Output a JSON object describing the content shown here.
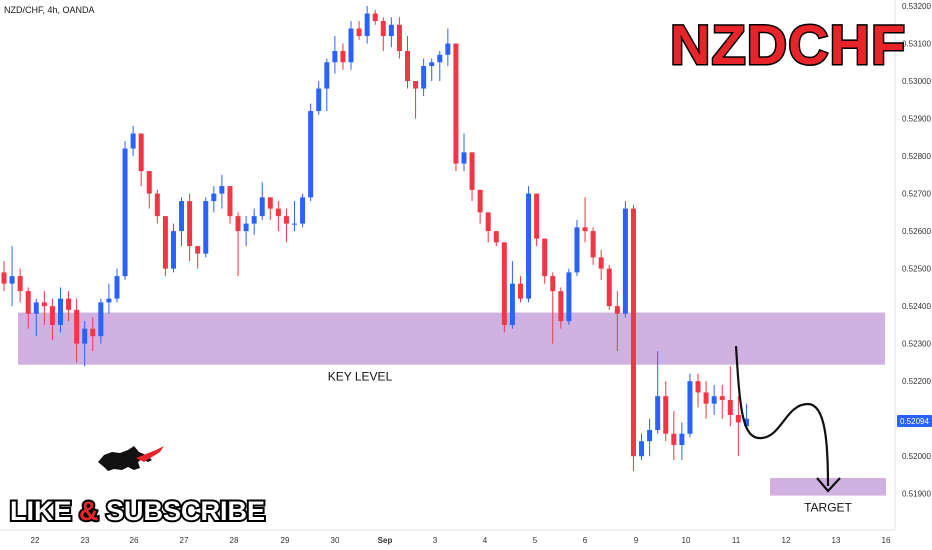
{
  "header": {
    "symbol_info": "NZD/CHF, 4h, OANDA"
  },
  "brand_title": "NZDCHF",
  "promo": {
    "like": "LIKE",
    "amp": "&",
    "subscribe": "SUBSCRIBE"
  },
  "colors": {
    "up": "#2962ff",
    "down": "#f23645",
    "zone": "#c8a5dd",
    "brand": "#e8242b"
  },
  "chart_data": {
    "type": "candlestick",
    "ylim": [
      0.5187,
      0.532
    ],
    "yticks": [
      0.532,
      0.531,
      0.53,
      0.529,
      0.528,
      0.527,
      0.526,
      0.525,
      0.524,
      0.523,
      0.522,
      0.521,
      0.52,
      0.519
    ],
    "x_ticks": [
      "22",
      "23",
      "26",
      "27",
      "28",
      "29",
      "30",
      "Sep",
      "3",
      "4",
      "5",
      "6",
      "9",
      "10",
      "11",
      "12",
      "13",
      "16"
    ],
    "current_price": "0.52094",
    "key_level": {
      "label": "KEY LEVEL",
      "from": 0.52244,
      "to": 0.52383
    },
    "target": {
      "label": "TARGET",
      "from": 0.51895,
      "to": 0.51942
    },
    "candles": [
      [
        0.5249,
        0.5252,
        0.5244,
        0.5246
      ],
      [
        0.5246,
        0.5256,
        0.524,
        0.5248
      ],
      [
        0.5248,
        0.525,
        0.5241,
        0.5244
      ],
      [
        0.5244,
        0.5245,
        0.5234,
        0.5238
      ],
      [
        0.5238,
        0.5242,
        0.5232,
        0.5241
      ],
      [
        0.5241,
        0.5244,
        0.5235,
        0.524
      ],
      [
        0.524,
        0.5242,
        0.5231,
        0.5235
      ],
      [
        0.5235,
        0.5245,
        0.5233,
        0.5242
      ],
      [
        0.5242,
        0.5244,
        0.5236,
        0.5239
      ],
      [
        0.5239,
        0.5242,
        0.5225,
        0.523
      ],
      [
        0.523,
        0.5236,
        0.5224,
        0.5234
      ],
      [
        0.5234,
        0.5237,
        0.5228,
        0.5232
      ],
      [
        0.5232,
        0.5242,
        0.523,
        0.5241
      ],
      [
        0.5241,
        0.5246,
        0.5238,
        0.5242
      ],
      [
        0.5242,
        0.525,
        0.5241,
        0.5248
      ],
      [
        0.5248,
        0.5284,
        0.5247,
        0.5282
      ],
      [
        0.5282,
        0.5288,
        0.528,
        0.5286
      ],
      [
        0.5286,
        0.5286,
        0.5272,
        0.5276
      ],
      [
        0.5276,
        0.5276,
        0.5266,
        0.527
      ],
      [
        0.527,
        0.5271,
        0.5262,
        0.5264
      ],
      [
        0.5264,
        0.5264,
        0.5248,
        0.525
      ],
      [
        0.525,
        0.5262,
        0.5249,
        0.526
      ],
      [
        0.526,
        0.5269,
        0.5256,
        0.5268
      ],
      [
        0.5268,
        0.527,
        0.5252,
        0.5256
      ],
      [
        0.5256,
        0.5256,
        0.525,
        0.5254
      ],
      [
        0.5254,
        0.5269,
        0.5253,
        0.5268
      ],
      [
        0.5268,
        0.5272,
        0.5265,
        0.527
      ],
      [
        0.527,
        0.5275,
        0.5266,
        0.5272
      ],
      [
        0.5272,
        0.5272,
        0.5262,
        0.5264
      ],
      [
        0.5264,
        0.5265,
        0.5248,
        0.526
      ],
      [
        0.526,
        0.5264,
        0.5256,
        0.5262
      ],
      [
        0.5262,
        0.5266,
        0.5259,
        0.5264
      ],
      [
        0.5264,
        0.5273,
        0.5263,
        0.5269
      ],
      [
        0.5269,
        0.5269,
        0.5263,
        0.5266
      ],
      [
        0.5266,
        0.5268,
        0.526,
        0.5264
      ],
      [
        0.5264,
        0.5266,
        0.5257,
        0.5262
      ],
      [
        0.5262,
        0.5268,
        0.526,
        0.5262
      ],
      [
        0.5262,
        0.527,
        0.5261,
        0.5269
      ],
      [
        0.5269,
        0.5294,
        0.5268,
        0.5292
      ],
      [
        0.5292,
        0.53,
        0.5291,
        0.5298
      ],
      [
        0.5298,
        0.5306,
        0.5292,
        0.5305
      ],
      [
        0.5305,
        0.5312,
        0.5302,
        0.5308
      ],
      [
        0.5308,
        0.531,
        0.5303,
        0.5305
      ],
      [
        0.5305,
        0.5316,
        0.5303,
        0.5314
      ],
      [
        0.5314,
        0.5316,
        0.5311,
        0.5312
      ],
      [
        0.5312,
        0.532,
        0.531,
        0.5318
      ],
      [
        0.5318,
        0.5319,
        0.5315,
        0.5316
      ],
      [
        0.5316,
        0.5317,
        0.5308,
        0.5312
      ],
      [
        0.5312,
        0.5317,
        0.5309,
        0.5315
      ],
      [
        0.5315,
        0.5317,
        0.5306,
        0.5308
      ],
      [
        0.5308,
        0.5312,
        0.5298,
        0.53
      ],
      [
        0.53,
        0.53,
        0.529,
        0.5298
      ],
      [
        0.5298,
        0.5306,
        0.5296,
        0.5304
      ],
      [
        0.5304,
        0.5306,
        0.53,
        0.5305
      ],
      [
        0.5305,
        0.5308,
        0.53,
        0.5307
      ],
      [
        0.5307,
        0.5314,
        0.5304,
        0.531
      ],
      [
        0.531,
        0.531,
        0.5276,
        0.5278
      ],
      [
        0.5278,
        0.5286,
        0.5276,
        0.5281
      ],
      [
        0.5281,
        0.5281,
        0.5268,
        0.5271
      ],
      [
        0.5271,
        0.5271,
        0.5262,
        0.5265
      ],
      [
        0.5265,
        0.5265,
        0.5257,
        0.526
      ],
      [
        0.526,
        0.526,
        0.5256,
        0.5257
      ],
      [
        0.5257,
        0.5257,
        0.5233,
        0.5235
      ],
      [
        0.5235,
        0.5252,
        0.5234,
        0.5246
      ],
      [
        0.5246,
        0.5248,
        0.5241,
        0.5242
      ],
      [
        0.5242,
        0.5272,
        0.5241,
        0.527
      ],
      [
        0.527,
        0.527,
        0.5256,
        0.5258
      ],
      [
        0.5258,
        0.5258,
        0.5246,
        0.5248
      ],
      [
        0.5248,
        0.5249,
        0.523,
        0.5244
      ],
      [
        0.5244,
        0.5245,
        0.5234,
        0.5236
      ],
      [
        0.5236,
        0.525,
        0.5235,
        0.5249
      ],
      [
        0.5249,
        0.5263,
        0.5248,
        0.5261
      ],
      [
        0.5261,
        0.5269,
        0.5257,
        0.526
      ],
      [
        0.526,
        0.5261,
        0.5251,
        0.5253
      ],
      [
        0.5253,
        0.5255,
        0.5247,
        0.525
      ],
      [
        0.525,
        0.5251,
        0.5239,
        0.524
      ],
      [
        0.524,
        0.5244,
        0.5228,
        0.5238
      ],
      [
        0.5238,
        0.5268,
        0.5237,
        0.5266
      ],
      [
        0.5266,
        0.5267,
        0.5196,
        0.52
      ],
      [
        0.52,
        0.5206,
        0.5199,
        0.5204
      ],
      [
        0.5204,
        0.521,
        0.52,
        0.5207
      ],
      [
        0.5207,
        0.5228,
        0.5206,
        0.5216
      ],
      [
        0.5216,
        0.522,
        0.5204,
        0.5206
      ],
      [
        0.5206,
        0.5212,
        0.5199,
        0.5203
      ],
      [
        0.5203,
        0.5209,
        0.5199,
        0.5206
      ],
      [
        0.5206,
        0.5222,
        0.5205,
        0.522
      ],
      [
        0.522,
        0.5222,
        0.5213,
        0.5217
      ],
      [
        0.5217,
        0.522,
        0.521,
        0.5214
      ],
      [
        0.5214,
        0.5219,
        0.5211,
        0.5216
      ],
      [
        0.5216,
        0.5219,
        0.521,
        0.5215
      ],
      [
        0.5215,
        0.5224,
        0.5208,
        0.5211
      ],
      [
        0.5211,
        0.5216,
        0.52,
        0.5209
      ],
      [
        0.5208,
        0.5214,
        0.5207,
        0.521
      ]
    ]
  }
}
